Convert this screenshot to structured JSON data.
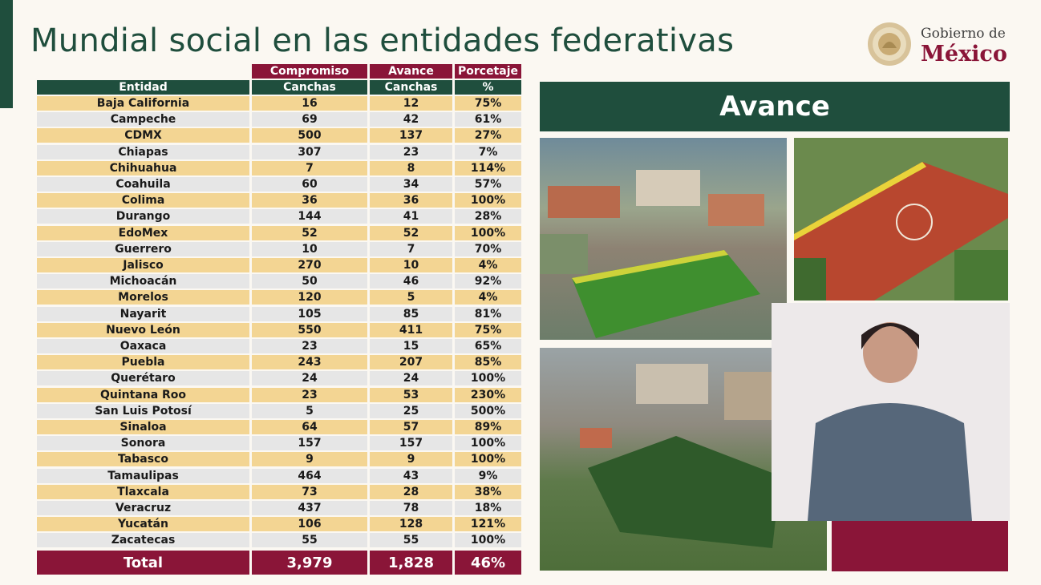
{
  "page": {
    "title": "Mundial social en las entidades federativas",
    "logo_line1": "Gobierno de",
    "logo_line2": "México"
  },
  "table": {
    "top_headers": [
      "Compromiso",
      "Avance",
      "Porcetaje"
    ],
    "sub_headers": [
      "Entidad",
      "Canchas",
      "Canchas",
      "%"
    ],
    "rows": [
      [
        "Baja California",
        "16",
        "12",
        "75%"
      ],
      [
        "Campeche",
        "69",
        "42",
        "61%"
      ],
      [
        "CDMX",
        "500",
        "137",
        "27%"
      ],
      [
        "Chiapas",
        "307",
        "23",
        "7%"
      ],
      [
        "Chihuahua",
        "7",
        "8",
        "114%"
      ],
      [
        "Coahuila",
        "60",
        "34",
        "57%"
      ],
      [
        "Colima",
        "36",
        "36",
        "100%"
      ],
      [
        "Durango",
        "144",
        "41",
        "28%"
      ],
      [
        "EdoMex",
        "52",
        "52",
        "100%"
      ],
      [
        "Guerrero",
        "10",
        "7",
        "70%"
      ],
      [
        "Jalisco",
        "270",
        "10",
        "4%"
      ],
      [
        "Michoacán",
        "50",
        "46",
        "92%"
      ],
      [
        "Morelos",
        "120",
        "5",
        "4%"
      ],
      [
        "Nayarit",
        "105",
        "85",
        "81%"
      ],
      [
        "Nuevo León",
        "550",
        "411",
        "75%"
      ],
      [
        "Oaxaca",
        "23",
        "15",
        "65%"
      ],
      [
        "Puebla",
        "243",
        "207",
        "85%"
      ],
      [
        "Querétaro",
        "24",
        "24",
        "100%"
      ],
      [
        "Quintana Roo",
        "23",
        "53",
        "230%"
      ],
      [
        "San Luis Potosí",
        "5",
        "25",
        "500%"
      ],
      [
        "Sinaloa",
        "64",
        "57",
        "89%"
      ],
      [
        "Sonora",
        "157",
        "157",
        "100%"
      ],
      [
        "Tabasco",
        "9",
        "9",
        "100%"
      ],
      [
        "Tamaulipas",
        "464",
        "43",
        "9%"
      ],
      [
        "Tlaxcala",
        "73",
        "28",
        "38%"
      ],
      [
        "Veracruz",
        "437",
        "78",
        "18%"
      ],
      [
        "Yucatán",
        "106",
        "128",
        "121%"
      ],
      [
        "Zacatecas",
        "55",
        "55",
        "100%"
      ]
    ],
    "total": [
      "Total",
      "3,979",
      "1,828",
      "46%"
    ]
  },
  "panel": {
    "banner": "Avance"
  },
  "colors": {
    "green": "#1f4e3d",
    "maroon": "#8a1538",
    "gold_row": "#f3d593",
    "gray_row": "#e6e6e6"
  }
}
